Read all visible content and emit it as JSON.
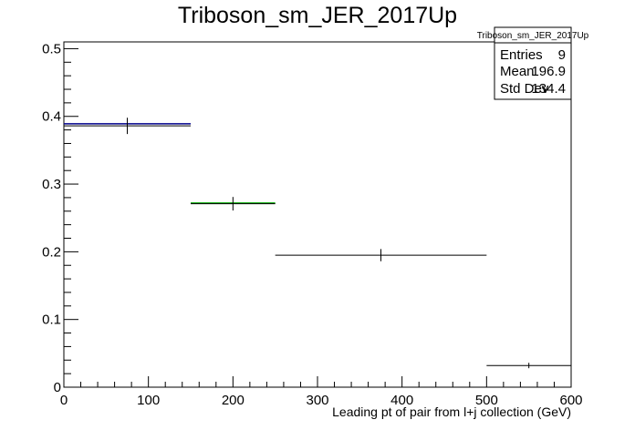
{
  "chart_data": {
    "type": "histogram",
    "title": "Triboson_sm_JER_2017Up",
    "xlabel": "Leading pt of pair from l+j collection (GeV)",
    "ylabel": "",
    "xlim": [
      0,
      600
    ],
    "ylim": [
      0,
      0.51
    ],
    "x_ticks": [
      "0",
      "100",
      "200",
      "300",
      "400",
      "500",
      "600"
    ],
    "y_ticks": [
      "0",
      "0.1",
      "0.2",
      "0.3",
      "0.4",
      "0.5"
    ],
    "bins": [
      {
        "x_low": 0,
        "x_high": 150,
        "value": 0.386,
        "error": 0.012
      },
      {
        "x_low": 150,
        "x_high": 250,
        "value": 0.271,
        "error": 0.01
      },
      {
        "x_low": 250,
        "x_high": 500,
        "value": 0.195,
        "error": 0.009
      },
      {
        "x_low": 500,
        "x_high": 600,
        "value": 0.032,
        "error": 0.004
      }
    ],
    "overlay_lines": [
      {
        "x_low": 0,
        "x_high": 150,
        "value": 0.389,
        "color": "#00008b"
      },
      {
        "x_low": 150,
        "x_high": 250,
        "value": 0.272,
        "color": "#00aa00"
      }
    ],
    "stats_box": {
      "title": "Triboson_sm_JER_2017Up",
      "rows": [
        {
          "label": "Entries",
          "value": "9"
        },
        {
          "label": "Mean",
          "value": "196.9"
        },
        {
          "label": "Std Dev",
          "value": "134.4"
        }
      ]
    },
    "grid": false,
    "legend": "top-right"
  }
}
